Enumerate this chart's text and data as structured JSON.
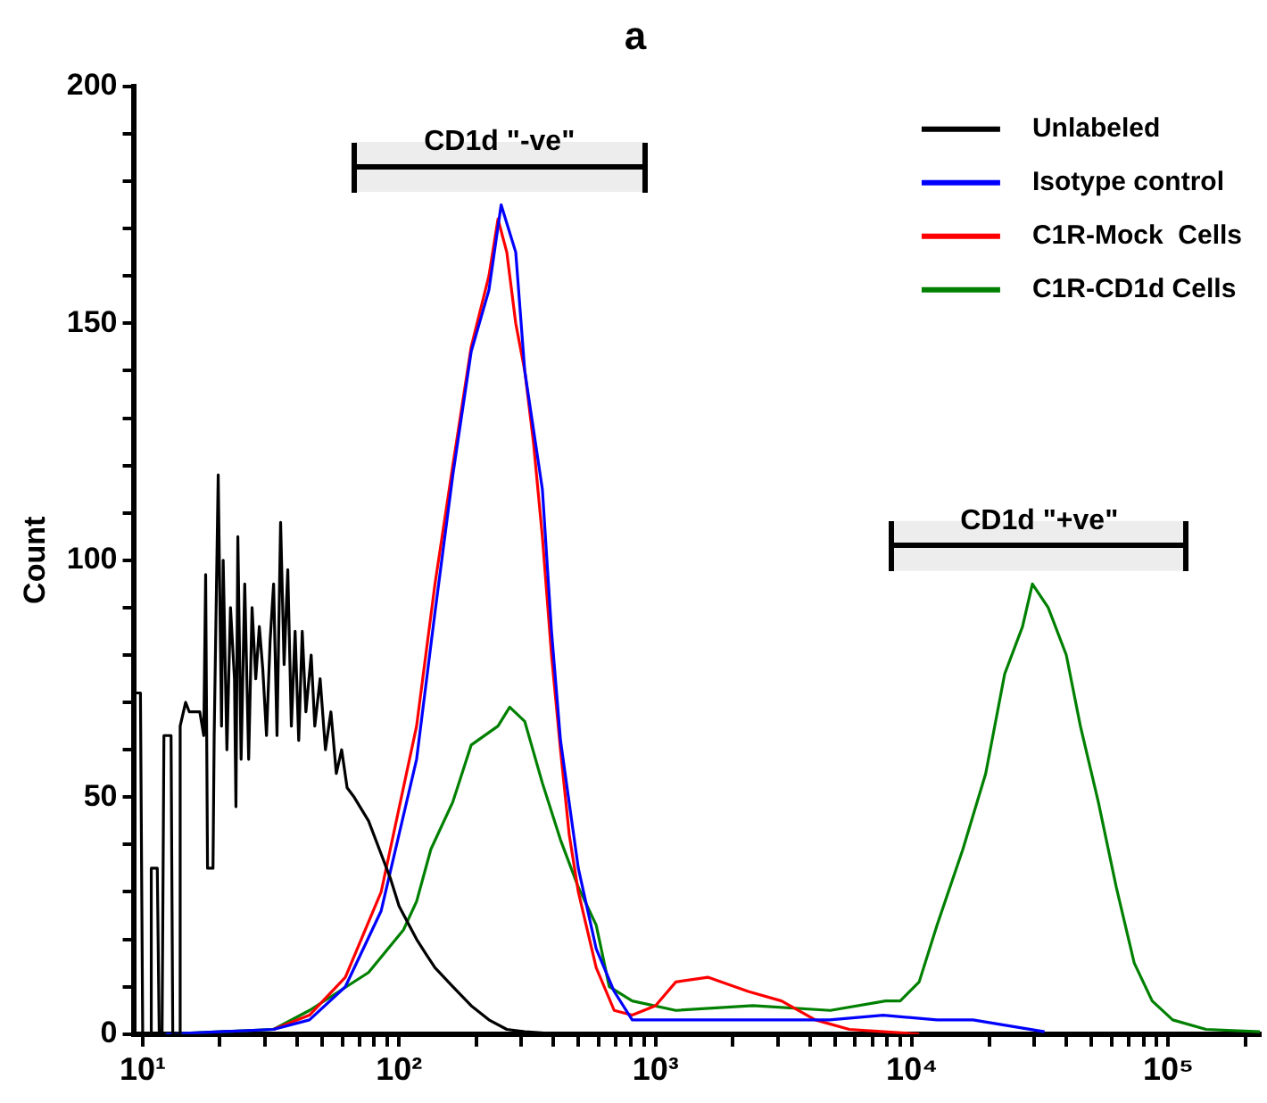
{
  "chart_data": {
    "type": "line",
    "title": "a",
    "ylabel": "Count",
    "log": "x",
    "legend": "top right",
    "grid": false,
    "marker": "none",
    "line_style": "solid",
    "xlim": [
      9.2,
      227500
    ],
    "ylim": [
      0,
      200
    ],
    "xticks": [
      {
        "value": 10,
        "label": "10¹"
      },
      {
        "value": 20,
        "label": null
      },
      {
        "value": 30,
        "label": null
      },
      {
        "value": 40,
        "label": null
      },
      {
        "value": 50,
        "label": null
      },
      {
        "value": 60,
        "label": null
      },
      {
        "value": 70,
        "label": null
      },
      {
        "value": 80,
        "label": null
      },
      {
        "value": 90,
        "label": null
      },
      {
        "value": 100,
        "label": "10²"
      },
      {
        "value": 200,
        "label": null
      },
      {
        "value": 300,
        "label": null
      },
      {
        "value": 400,
        "label": null
      },
      {
        "value": 500,
        "label": null
      },
      {
        "value": 600,
        "label": null
      },
      {
        "value": 700,
        "label": null
      },
      {
        "value": 800,
        "label": null
      },
      {
        "value": 900,
        "label": null
      },
      {
        "value": 1000,
        "label": "10³"
      },
      {
        "value": 2000,
        "label": null
      },
      {
        "value": 3000,
        "label": null
      },
      {
        "value": 4000,
        "label": null
      },
      {
        "value": 5000,
        "label": null
      },
      {
        "value": 6000,
        "label": null
      },
      {
        "value": 7000,
        "label": null
      },
      {
        "value": 8000,
        "label": null
      },
      {
        "value": 9000,
        "label": null
      },
      {
        "value": 10000,
        "label": "10⁴"
      },
      {
        "value": 20000,
        "label": null
      },
      {
        "value": 30000,
        "label": null
      },
      {
        "value": 40000,
        "label": null
      },
      {
        "value": 50000,
        "label": null
      },
      {
        "value": 60000,
        "label": null
      },
      {
        "value": 70000,
        "label": null
      },
      {
        "value": 80000,
        "label": null
      },
      {
        "value": 90000,
        "label": null
      },
      {
        "value": 100000,
        "label": "10⁵"
      },
      {
        "value": 200000,
        "label": null
      }
    ],
    "yticks": [
      0,
      {
        "value": 10,
        "label": null
      },
      {
        "value": 20,
        "label": null
      },
      {
        "value": 30,
        "label": null
      },
      {
        "value": 40,
        "label": null
      },
      50,
      {
        "value": 60,
        "label": null
      },
      {
        "value": 70,
        "label": null
      },
      {
        "value": 80,
        "label": null
      },
      {
        "value": 90,
        "label": null
      },
      100,
      {
        "value": 110,
        "label": null
      },
      {
        "value": 120,
        "label": null
      },
      {
        "value": 130,
        "label": null
      },
      {
        "value": 140,
        "label": null
      },
      150,
      {
        "value": 160,
        "label": null
      },
      {
        "value": 170,
        "label": null
      },
      {
        "value": 180,
        "label": null
      },
      {
        "value": 190,
        "label": null
      },
      200
    ],
    "bands": [
      {
        "axis": "x",
        "from": 66.8,
        "to": 908,
        "label": "CD1d \"-ve\""
      },
      {
        "axis": "x",
        "from": 8380,
        "to": 117500,
        "label": "CD1d \"+ve\""
      }
    ],
    "series": [
      {
        "name": "Unlabeled",
        "color": "#000000",
        "x": [
          9.2,
          9.8,
          10,
          10.7,
          10.8,
          11.4,
          11.6,
          11.9,
          12.1,
          12.9,
          13.1,
          13.8,
          14.0,
          14.7,
          15.2,
          16.7,
          17.3,
          17.6,
          17.9,
          18.8,
          19.0,
          19.7,
          20.3,
          20.6,
          21.3,
          22.0,
          22.8,
          23.1,
          23.5,
          24.2,
          25.0,
          25.9,
          26.7,
          27.6,
          28.5,
          29.4,
          30.4,
          31.4,
          32.4,
          33.4,
          34.5,
          35.6,
          36.8,
          38.0,
          39.3,
          40.6,
          41.9,
          43.3,
          45.4,
          46.9,
          49.2,
          51.6,
          54.2,
          56.9,
          59.7,
          62.7,
          66.8,
          76.0,
          85.1,
          92.3,
          100,
          117,
          127,
          138,
          162,
          191,
          224,
          263,
          309,
          426,
          811,
          2130
        ],
        "values": [
          72,
          72,
          0,
          0,
          35,
          35,
          0,
          0,
          63,
          63,
          0,
          0,
          65,
          70,
          68,
          68,
          63,
          97,
          35,
          35,
          63,
          118,
          65,
          100,
          60,
          90,
          75,
          48,
          105,
          58,
          95,
          58,
          90,
          75,
          86,
          77,
          63,
          83,
          95,
          63,
          108,
          78,
          98,
          65,
          85,
          62,
          85,
          68,
          80,
          65,
          75,
          60,
          68,
          55,
          60,
          52,
          50,
          45,
          38,
          33,
          27,
          20,
          17,
          14,
          10,
          6,
          3,
          1,
          0.5,
          0,
          0,
          0
        ]
      },
      {
        "name": "Isotype control",
        "color": "#0000ff",
        "x": [
          12.3,
          20.0,
          32.4,
          44.7,
          61.7,
          85.1,
          117,
          138,
          162,
          191,
          224,
          250,
          285,
          309,
          362,
          393,
          426,
          500,
          587,
          690,
          811,
          953,
          1315,
          1815,
          2945,
          4765,
          7730,
          12530,
          17300,
          32900
        ],
        "values": [
          0,
          0.5,
          1,
          3,
          10,
          26,
          58,
          89,
          118,
          144,
          157,
          175,
          165,
          140,
          115,
          85,
          62,
          35,
          18,
          9,
          3,
          3,
          3,
          3,
          3,
          3,
          4,
          3,
          3,
          0.5
        ]
      },
      {
        "name": "C1R-Mock  Cells",
        "color": "#ff0000",
        "x": [
          32.4,
          44.7,
          61.7,
          85.1,
          117,
          138,
          162,
          191,
          224,
          243,
          263,
          285,
          309,
          334,
          362,
          393,
          426,
          461,
          500,
          587,
          690,
          811,
          1000,
          1200,
          1600,
          2300,
          3100,
          4200,
          5700,
          10670
        ],
        "values": [
          1,
          4,
          12,
          30,
          65,
          95,
          120,
          145,
          160,
          172,
          165,
          150,
          140,
          125,
          105,
          80,
          60,
          42,
          30,
          14,
          5,
          4,
          6,
          11,
          12,
          9,
          7,
          3,
          1,
          0
        ]
      },
      {
        "name": "C1R-CD1d Cells",
        "color": "#008000",
        "x": [
          12.3,
          20.0,
          32.4,
          44.7,
          76.0,
          104,
          117,
          133,
          162,
          191,
          243,
          270,
          309,
          362,
          426,
          500,
          587,
          660,
          811,
          1200,
          2400,
          4800,
          7900,
          9000,
          10670,
          12530,
          15800,
          19400,
          23000,
          27000,
          29500,
          34000,
          40000,
          45400,
          53330,
          62660,
          73620,
          86490,
          104000,
          140300,
          227500
        ],
        "values": [
          0,
          0.5,
          1,
          5,
          13,
          22,
          28,
          39,
          49,
          61,
          65,
          69,
          66,
          53,
          41,
          31,
          23,
          10,
          7,
          5,
          6,
          5,
          7,
          7,
          11,
          23,
          39,
          55,
          76,
          86,
          95,
          90,
          80,
          65,
          49,
          31,
          15,
          7,
          3,
          1,
          0.5
        ]
      }
    ]
  }
}
